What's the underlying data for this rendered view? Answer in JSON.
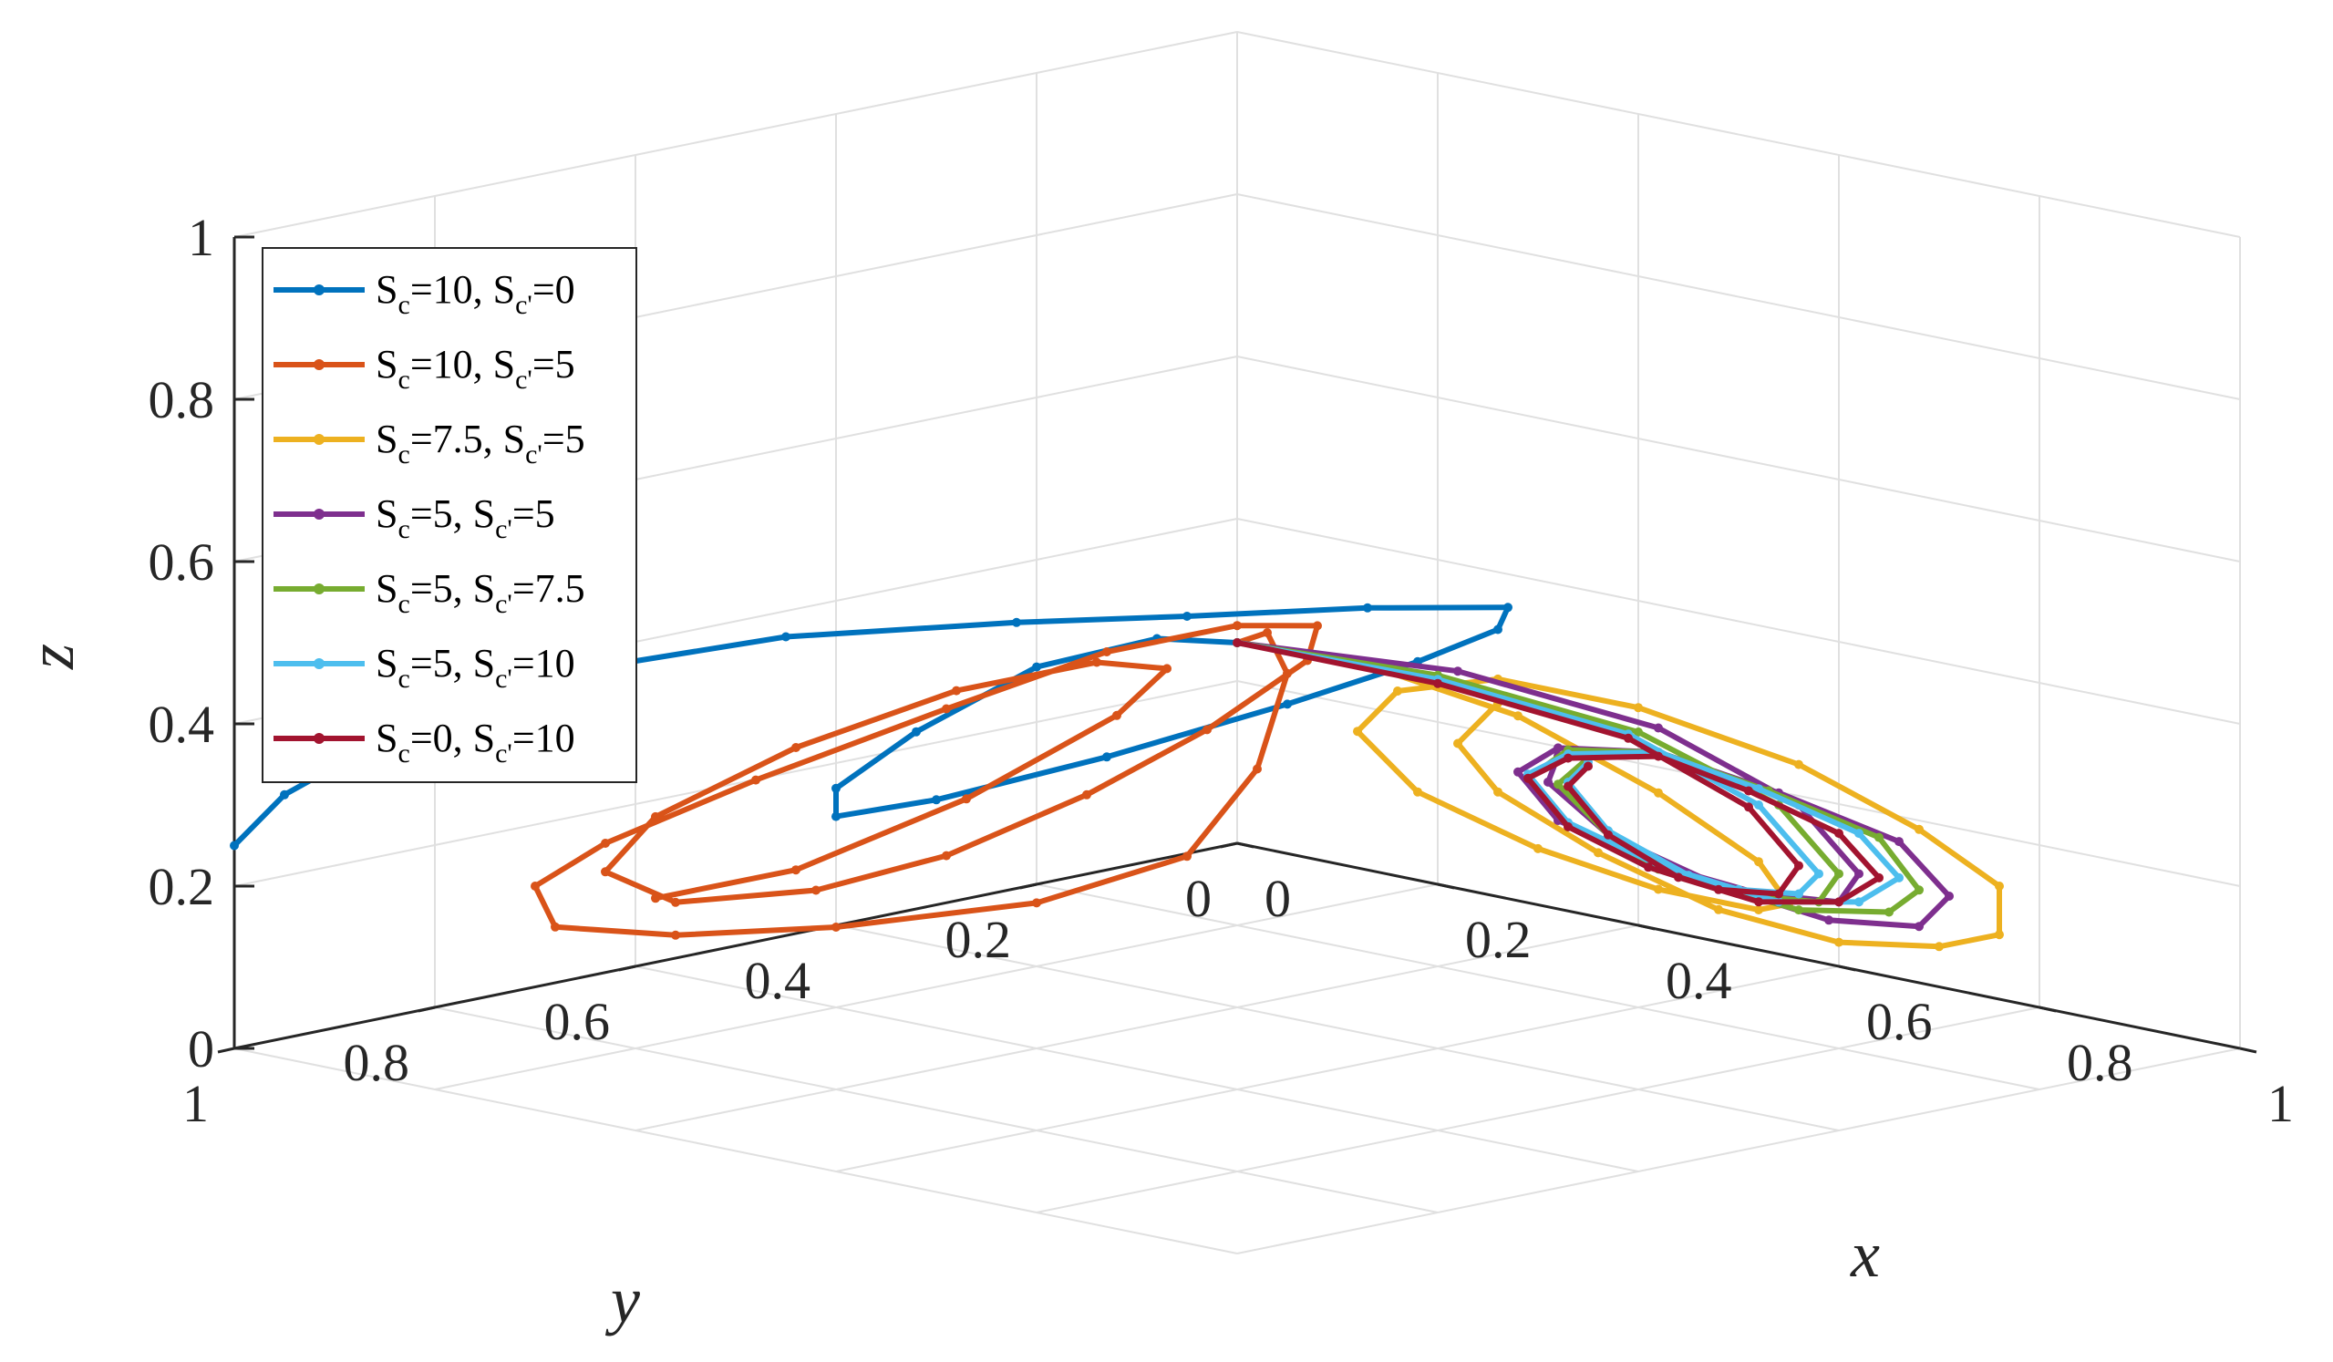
{
  "chart_data": {
    "type": "line",
    "projection": "3d",
    "xlabel": "x",
    "ylabel": "y",
    "zlabel": "z",
    "xlim": [
      0,
      1
    ],
    "ylim": [
      0,
      1
    ],
    "zlim": [
      0,
      1
    ],
    "xticks": [
      "0",
      "0.2",
      "0.4",
      "0.6",
      "0.8",
      "1"
    ],
    "yticks": [
      "0",
      "0.2",
      "0.4",
      "0.6",
      "0.8",
      "1"
    ],
    "zticks": [
      "0",
      "0.2",
      "0.4",
      "0.6",
      "0.8",
      "1"
    ],
    "grid": true,
    "legend_position": "top-left",
    "series": [
      {
        "name": "Sc=10, Sc'=0",
        "legend": {
          "p1": "S",
          "s1": "c",
          "p2": "=10, S",
          "s2": "c'",
          "p3": "=0"
        },
        "color": "#0072BD",
        "points": [
          [
            0.5,
            0.5,
            0.5
          ],
          [
            0.45,
            0.53,
            0.5
          ],
          [
            0.38,
            0.58,
            0.46
          ],
          [
            0.3,
            0.62,
            0.37
          ],
          [
            0.22,
            0.62,
            0.28
          ],
          [
            0.15,
            0.55,
            0.21
          ],
          [
            0.1,
            0.4,
            0.18
          ],
          [
            0.12,
            0.25,
            0.2
          ],
          [
            0.2,
            0.15,
            0.26
          ],
          [
            0.3,
            0.12,
            0.33
          ],
          [
            0.4,
            0.14,
            0.4
          ],
          [
            0.47,
            0.2,
            0.46
          ],
          [
            0.48,
            0.35,
            0.5
          ],
          [
            0.45,
            0.5,
            0.52
          ],
          [
            0.4,
            0.62,
            0.53
          ],
          [
            0.3,
            0.75,
            0.52
          ],
          [
            0.2,
            0.85,
            0.48
          ],
          [
            0.12,
            0.9,
            0.42
          ],
          [
            0.05,
            0.92,
            0.36
          ],
          [
            0.0,
            0.95,
            0.3
          ],
          [
            0.0,
            1.0,
            0.25
          ]
        ]
      },
      {
        "name": "Sc=10, Sc'=5",
        "legend": {
          "p1": "S",
          "s1": "c",
          "p2": "=10, S",
          "s2": "c'",
          "p3": "=5"
        },
        "color": "#D95319",
        "points": [
          [
            0.5,
            0.5,
            0.5
          ],
          [
            0.55,
            0.52,
            0.53
          ],
          [
            0.6,
            0.55,
            0.5
          ],
          [
            0.62,
            0.6,
            0.4
          ],
          [
            0.6,
            0.65,
            0.3
          ],
          [
            0.52,
            0.72,
            0.24
          ],
          [
            0.4,
            0.8,
            0.2
          ],
          [
            0.3,
            0.86,
            0.18
          ],
          [
            0.22,
            0.9,
            0.18
          ],
          [
            0.15,
            0.85,
            0.2
          ],
          [
            0.12,
            0.75,
            0.22
          ],
          [
            0.12,
            0.6,
            0.26
          ],
          [
            0.16,
            0.45,
            0.32
          ],
          [
            0.22,
            0.35,
            0.38
          ],
          [
            0.3,
            0.3,
            0.42
          ],
          [
            0.38,
            0.3,
            0.44
          ],
          [
            0.42,
            0.35,
            0.42
          ],
          [
            0.42,
            0.45,
            0.36
          ],
          [
            0.4,
            0.55,
            0.3
          ],
          [
            0.36,
            0.65,
            0.24
          ],
          [
            0.3,
            0.72,
            0.2
          ],
          [
            0.22,
            0.78,
            0.18
          ],
          [
            0.15,
            0.78,
            0.2
          ],
          [
            0.12,
            0.7,
            0.24
          ],
          [
            0.14,
            0.58,
            0.3
          ],
          [
            0.2,
            0.48,
            0.36
          ],
          [
            0.28,
            0.42,
            0.4
          ],
          [
            0.35,
            0.42,
            0.41
          ],
          [
            0.38,
            0.5,
            0.38
          ],
          [
            0.35,
            0.62,
            0.3
          ],
          [
            0.28,
            0.72,
            0.22
          ],
          [
            0.2,
            0.78,
            0.18
          ]
        ]
      },
      {
        "name": "Sc=7.5, Sc'=5",
        "legend": {
          "p1": "S",
          "s1": "c",
          "p2": "=7.5, S",
          "s2": "c'",
          "p3": "=5"
        },
        "color": "#EDB120",
        "points": [
          [
            0.5,
            0.5,
            0.5
          ],
          [
            0.58,
            0.45,
            0.48
          ],
          [
            0.66,
            0.38,
            0.42
          ],
          [
            0.72,
            0.3,
            0.32
          ],
          [
            0.74,
            0.22,
            0.22
          ],
          [
            0.7,
            0.15,
            0.14
          ],
          [
            0.62,
            0.1,
            0.1
          ],
          [
            0.52,
            0.1,
            0.1
          ],
          [
            0.44,
            0.14,
            0.14
          ],
          [
            0.4,
            0.22,
            0.22
          ],
          [
            0.42,
            0.3,
            0.32
          ],
          [
            0.5,
            0.34,
            0.4
          ],
          [
            0.6,
            0.34,
            0.44
          ],
          [
            0.7,
            0.3,
            0.42
          ],
          [
            0.8,
            0.24,
            0.36
          ],
          [
            0.86,
            0.18,
            0.28
          ],
          [
            0.88,
            0.12,
            0.2
          ],
          [
            0.84,
            0.08,
            0.12
          ],
          [
            0.76,
            0.06,
            0.08
          ],
          [
            0.66,
            0.06,
            0.06
          ],
          [
            0.56,
            0.08,
            0.08
          ],
          [
            0.48,
            0.12,
            0.14
          ],
          [
            0.44,
            0.18,
            0.22
          ],
          [
            0.46,
            0.24,
            0.3
          ],
          [
            0.54,
            0.28,
            0.38
          ]
        ]
      },
      {
        "name": "Sc=5, Sc'=5",
        "legend": {
          "p1": "S",
          "s1": "c",
          "p2": "=5, S",
          "s2": "c'",
          "p3": "=5"
        },
        "color": "#7E2F8E",
        "points": [
          [
            0.5,
            0.5,
            0.5
          ],
          [
            0.62,
            0.4,
            0.47
          ],
          [
            0.72,
            0.3,
            0.4
          ],
          [
            0.78,
            0.22,
            0.3
          ],
          [
            0.78,
            0.16,
            0.2
          ],
          [
            0.72,
            0.12,
            0.14
          ],
          [
            0.62,
            0.1,
            0.12
          ],
          [
            0.54,
            0.12,
            0.14
          ],
          [
            0.5,
            0.18,
            0.2
          ],
          [
            0.52,
            0.24,
            0.28
          ],
          [
            0.6,
            0.28,
            0.34
          ],
          [
            0.7,
            0.28,
            0.36
          ],
          [
            0.78,
            0.24,
            0.32
          ],
          [
            0.84,
            0.18,
            0.26
          ],
          [
            0.84,
            0.13,
            0.18
          ],
          [
            0.78,
            0.1,
            0.12
          ],
          [
            0.68,
            0.09,
            0.1
          ],
          [
            0.58,
            0.1,
            0.12
          ],
          [
            0.52,
            0.15,
            0.18
          ],
          [
            0.52,
            0.21,
            0.26
          ],
          [
            0.58,
            0.26,
            0.32
          ],
          [
            0.68,
            0.27,
            0.35
          ]
        ]
      },
      {
        "name": "Sc=5, Sc'=7.5",
        "legend": {
          "p1": "S",
          "s1": "c",
          "p2": "=5, S",
          "s2": "c'",
          "p3": "=7.5"
        },
        "color": "#77AC30",
        "points": [
          [
            0.5,
            0.5,
            0.5
          ],
          [
            0.62,
            0.42,
            0.47
          ],
          [
            0.72,
            0.32,
            0.4
          ],
          [
            0.77,
            0.23,
            0.3
          ],
          [
            0.77,
            0.17,
            0.2
          ],
          [
            0.71,
            0.13,
            0.14
          ],
          [
            0.62,
            0.11,
            0.12
          ],
          [
            0.55,
            0.13,
            0.14
          ],
          [
            0.52,
            0.19,
            0.2
          ],
          [
            0.54,
            0.25,
            0.28
          ],
          [
            0.61,
            0.28,
            0.34
          ],
          [
            0.7,
            0.28,
            0.36
          ],
          [
            0.77,
            0.24,
            0.32
          ],
          [
            0.82,
            0.18,
            0.26
          ],
          [
            0.81,
            0.13,
            0.18
          ],
          [
            0.75,
            0.1,
            0.13
          ],
          [
            0.66,
            0.1,
            0.11
          ],
          [
            0.58,
            0.12,
            0.13
          ],
          [
            0.54,
            0.17,
            0.19
          ],
          [
            0.55,
            0.23,
            0.27
          ],
          [
            0.62,
            0.27,
            0.33
          ]
        ]
      },
      {
        "name": "Sc=5, Sc'=10",
        "legend": {
          "p1": "S",
          "s1": "c",
          "p2": "=5, S",
          "s2": "c'",
          "p3": "=10"
        },
        "color": "#4DBEEE",
        "points": [
          [
            0.5,
            0.5,
            0.5
          ],
          [
            0.63,
            0.43,
            0.47
          ],
          [
            0.72,
            0.33,
            0.4
          ],
          [
            0.76,
            0.24,
            0.3
          ],
          [
            0.76,
            0.18,
            0.2
          ],
          [
            0.7,
            0.14,
            0.15
          ],
          [
            0.62,
            0.12,
            0.13
          ],
          [
            0.56,
            0.14,
            0.15
          ],
          [
            0.53,
            0.2,
            0.21
          ],
          [
            0.55,
            0.26,
            0.29
          ],
          [
            0.62,
            0.29,
            0.34
          ],
          [
            0.7,
            0.28,
            0.36
          ],
          [
            0.76,
            0.24,
            0.32
          ],
          [
            0.8,
            0.18,
            0.26
          ],
          [
            0.79,
            0.13,
            0.19
          ],
          [
            0.73,
            0.11,
            0.14
          ],
          [
            0.65,
            0.11,
            0.12
          ],
          [
            0.58,
            0.13,
            0.14
          ],
          [
            0.55,
            0.18,
            0.2
          ],
          [
            0.57,
            0.24,
            0.28
          ],
          [
            0.63,
            0.28,
            0.33
          ]
        ]
      },
      {
        "name": "Sc=0, Sc'=10",
        "legend": {
          "p1": "S",
          "s1": "c",
          "p2": "=0, S",
          "s2": "c'",
          "p3": "=10"
        },
        "color": "#A2142F",
        "points": [
          [
            0.5,
            0.5,
            0.5
          ],
          [
            0.64,
            0.44,
            0.47
          ],
          [
            0.73,
            0.34,
            0.4
          ],
          [
            0.76,
            0.25,
            0.3
          ],
          [
            0.75,
            0.19,
            0.21
          ],
          [
            0.69,
            0.15,
            0.15
          ],
          [
            0.61,
            0.13,
            0.13
          ],
          [
            0.56,
            0.15,
            0.15
          ],
          [
            0.54,
            0.21,
            0.21
          ],
          [
            0.56,
            0.27,
            0.29
          ],
          [
            0.63,
            0.3,
            0.34
          ],
          [
            0.71,
            0.29,
            0.36
          ],
          [
            0.76,
            0.25,
            0.32
          ],
          [
            0.79,
            0.19,
            0.26
          ],
          [
            0.78,
            0.14,
            0.19
          ],
          [
            0.72,
            0.12,
            0.14
          ],
          [
            0.64,
            0.12,
            0.12
          ],
          [
            0.58,
            0.14,
            0.14
          ],
          [
            0.56,
            0.19,
            0.2
          ],
          [
            0.58,
            0.25,
            0.28
          ],
          [
            0.64,
            0.29,
            0.33
          ]
        ]
      }
    ]
  }
}
